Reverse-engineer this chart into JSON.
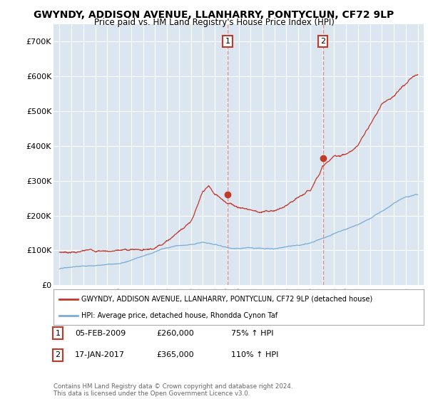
{
  "title": "GWYNDY, ADDISON AVENUE, LLANHARRY, PONTYCLUN, CF72 9LP",
  "subtitle": "Price paid vs. HM Land Registry's House Price Index (HPI)",
  "title_fontsize": 10,
  "subtitle_fontsize": 8.5,
  "bg_color": "#ffffff",
  "plot_bg_color": "#dce6f1",
  "grid_color": "#ffffff",
  "ylim": [
    0,
    750000
  ],
  "yticks": [
    0,
    100000,
    200000,
    300000,
    400000,
    500000,
    600000,
    700000
  ],
  "ytick_labels": [
    "£0",
    "£100K",
    "£200K",
    "£300K",
    "£400K",
    "£500K",
    "£600K",
    "£700K"
  ],
  "red_line_color": "#c0392b",
  "blue_line_color": "#7aadd4",
  "marker1_x": 2009.09,
  "marker1_y": 260000,
  "marker1_label": "1",
  "marker2_x": 2017.05,
  "marker2_y": 365000,
  "marker2_label": "2",
  "vline1_x": 2009.09,
  "vline2_x": 2017.05,
  "legend_red": "GWYNDY, ADDISON AVENUE, LLANHARRY, PONTYCLUN, CF72 9LP (detached house)",
  "legend_blue": "HPI: Average price, detached house, Rhondda Cynon Taf",
  "table_rows": [
    [
      "1",
      "05-FEB-2009",
      "£260,000",
      "75% ↑ HPI"
    ],
    [
      "2",
      "17-JAN-2017",
      "£365,000",
      "110% ↑ HPI"
    ]
  ],
  "footer": "Contains HM Land Registry data © Crown copyright and database right 2024.\nThis data is licensed under the Open Government Licence v3.0.",
  "xmin": 1994.5,
  "xmax": 2025.5,
  "red_key_x": [
    1995,
    1996,
    1997,
    1998,
    1999,
    2000,
    2001,
    2002,
    2003,
    2004,
    2005,
    2006,
    2007,
    2007.5,
    2008,
    2009.09,
    2010,
    2011,
    2012,
    2013,
    2014,
    2015,
    2016,
    2017.05,
    2018,
    2019,
    2020,
    2021,
    2022,
    2023,
    2024,
    2024.8
  ],
  "red_key_y": [
    95000,
    98000,
    100000,
    102000,
    103000,
    106000,
    108000,
    110000,
    120000,
    145000,
    175000,
    210000,
    290000,
    305000,
    280000,
    260000,
    250000,
    245000,
    240000,
    245000,
    255000,
    270000,
    290000,
    365000,
    390000,
    400000,
    420000,
    480000,
    540000,
    570000,
    600000,
    620000
  ],
  "blue_key_x": [
    1995,
    1996,
    1997,
    1998,
    1999,
    2000,
    2001,
    2002,
    2003,
    2004,
    2005,
    2006,
    2007,
    2008,
    2009,
    2010,
    2011,
    2012,
    2013,
    2014,
    2015,
    2016,
    2017,
    2018,
    2019,
    2020,
    2021,
    2022,
    2023,
    2024,
    2024.8
  ],
  "blue_key_y": [
    47000,
    50000,
    54000,
    58000,
    62000,
    67000,
    75000,
    85000,
    98000,
    110000,
    118000,
    124000,
    130000,
    122000,
    112000,
    108000,
    108000,
    108000,
    110000,
    115000,
    120000,
    130000,
    142000,
    155000,
    165000,
    175000,
    195000,
    215000,
    235000,
    255000,
    262000
  ]
}
